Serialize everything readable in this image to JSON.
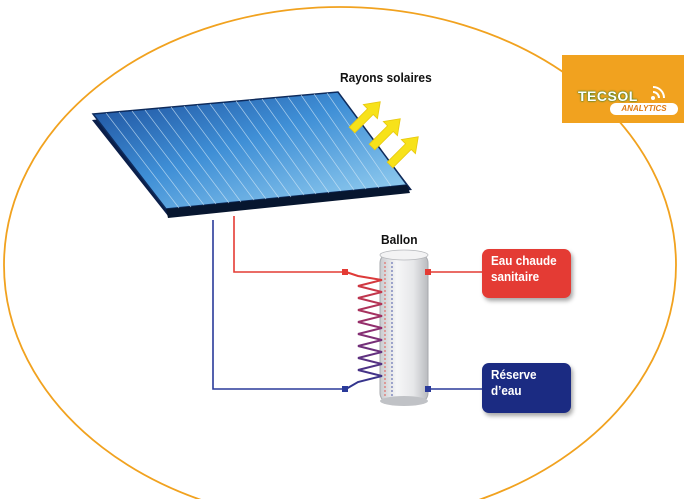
{
  "labels": {
    "rays": "Rayons solaires",
    "tank": "Ballon"
  },
  "outputs": {
    "hot_water": [
      "Eau chaude",
      "sanitaire"
    ],
    "water_reserve": [
      "Réserve",
      "d’eau"
    ]
  },
  "logo": {
    "name": "TECSOL",
    "sub": "ANALYTICS"
  },
  "colors": {
    "hot": "#e43b34",
    "cold": "#1b2b82",
    "logo_bg": "#f1a21f",
    "rays": "#f7e21a",
    "panel": "#2a6fc0"
  }
}
